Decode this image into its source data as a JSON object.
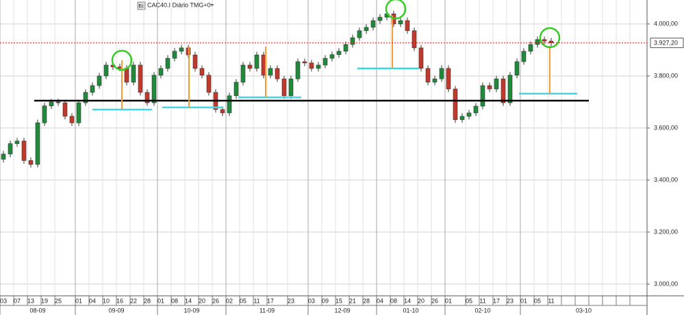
{
  "chart_data": {
    "type": "candlestick",
    "title": "CAC40.I Diário TMG+0▾",
    "icon": "Ec",
    "categories": [
      "03",
      null,
      "07",
      null,
      "13",
      null,
      "19",
      null,
      "25",
      null,
      null,
      "01",
      null,
      "04",
      null,
      "10",
      null,
      "16",
      null,
      "22",
      null,
      "28",
      null,
      "01",
      null,
      "08",
      null,
      "14",
      null,
      "20",
      null,
      "26",
      null,
      "02",
      null,
      "05",
      null,
      "11",
      null,
      "17",
      null,
      null,
      "23",
      null,
      null,
      "03",
      null,
      "09",
      null,
      "15",
      null,
      "21",
      null,
      "28",
      null,
      "04",
      null,
      "08",
      null,
      "14",
      null,
      "20",
      null,
      "26",
      null,
      "01",
      null,
      null,
      "05",
      null,
      "11",
      null,
      "17",
      null,
      "23",
      null,
      "01",
      null,
      "05",
      null,
      "11",
      null,
      null,
      null,
      null,
      null,
      null,
      null,
      null,
      null,
      null,
      null,
      null,
      null
    ],
    "months": [
      "08-09",
      null,
      null,
      null,
      null,
      null,
      null,
      null,
      null,
      null,
      null,
      "09-09",
      null,
      null,
      null,
      null,
      null,
      null,
      null,
      null,
      null,
      null,
      null,
      "10-09",
      null,
      null,
      null,
      null,
      null,
      null,
      null,
      null,
      null,
      "11-09",
      null,
      null,
      null,
      null,
      null,
      null,
      null,
      null,
      null,
      null,
      null,
      "12-09",
      null,
      null,
      null,
      null,
      null,
      null,
      null,
      null,
      null,
      "01-10",
      null,
      null,
      null,
      null,
      null,
      null,
      null,
      null,
      null,
      "02-10",
      null,
      null,
      null,
      null,
      null,
      null,
      null,
      null,
      null,
      null,
      "03-10",
      null,
      null,
      null,
      null,
      null,
      null,
      null,
      null,
      null,
      null,
      null,
      null,
      null,
      null,
      null,
      null,
      null
    ],
    "ohlc": [
      [
        3480,
        3512,
        3468,
        3500
      ],
      [
        3500,
        3552,
        3488,
        3540
      ],
      [
        3540,
        3562,
        3528,
        3550
      ],
      [
        3550,
        3562,
        3463,
        3475
      ],
      [
        3475,
        3487,
        3448,
        3460
      ],
      [
        3460,
        3632,
        3448,
        3620
      ],
      [
        3620,
        3697,
        3608,
        3685
      ],
      [
        3685,
        3712,
        3673,
        3700
      ],
      [
        3700,
        3712,
        3685,
        3697
      ],
      [
        3697,
        3709,
        3633,
        3645
      ],
      [
        3645,
        3657,
        3608,
        3620
      ],
      [
        3620,
        3709,
        3608,
        3697
      ],
      [
        3697,
        3749,
        3685,
        3737
      ],
      [
        3737,
        3775,
        3725,
        3763
      ],
      [
        3763,
        3812,
        3751,
        3800
      ],
      [
        3800,
        3854,
        3788,
        3842
      ],
      [
        3842,
        3854,
        3823,
        3835
      ],
      [
        3835,
        3847,
        3818,
        3830
      ],
      [
        3830,
        3842,
        3764,
        3776
      ],
      [
        3776,
        3854,
        3764,
        3842
      ],
      [
        3842,
        3854,
        3725,
        3737
      ],
      [
        3737,
        3749,
        3685,
        3697
      ],
      [
        3697,
        3815,
        3685,
        3803
      ],
      [
        3803,
        3841,
        3791,
        3829
      ],
      [
        3829,
        3880,
        3817,
        3868
      ],
      [
        3868,
        3907,
        3856,
        3895
      ],
      [
        3895,
        3920,
        3883,
        3908
      ],
      [
        3908,
        3920,
        3869,
        3881
      ],
      [
        3881,
        3893,
        3817,
        3829
      ],
      [
        3829,
        3841,
        3791,
        3803
      ],
      [
        3803,
        3815,
        3725,
        3737
      ],
      [
        3737,
        3749,
        3659,
        3671
      ],
      [
        3671,
        3683,
        3646,
        3658
      ],
      [
        3658,
        3736,
        3646,
        3724
      ],
      [
        3724,
        3788,
        3712,
        3776
      ],
      [
        3776,
        3854,
        3764,
        3842
      ],
      [
        3842,
        3854,
        3817,
        3829
      ],
      [
        3829,
        3893,
        3817,
        3881
      ],
      [
        3881,
        3893,
        3791,
        3803
      ],
      [
        3803,
        3841,
        3791,
        3829
      ],
      [
        3829,
        3841,
        3777,
        3789
      ],
      [
        3789,
        3801,
        3712,
        3724
      ],
      [
        3724,
        3801,
        3712,
        3789
      ],
      [
        3789,
        3867,
        3777,
        3855
      ],
      [
        3855,
        3867,
        3838,
        3850
      ],
      [
        3850,
        3862,
        3817,
        3829
      ],
      [
        3829,
        3854,
        3817,
        3842
      ],
      [
        3842,
        3880,
        3830,
        3868
      ],
      [
        3868,
        3894,
        3856,
        3882
      ],
      [
        3882,
        3907,
        3870,
        3895
      ],
      [
        3895,
        3933,
        3883,
        3921
      ],
      [
        3921,
        3959,
        3909,
        3947
      ],
      [
        3947,
        3986,
        3935,
        3974
      ],
      [
        3974,
        3999,
        3962,
        3987
      ],
      [
        3987,
        4025,
        3975,
        4013
      ],
      [
        4013,
        4038,
        4001,
        4026
      ],
      [
        4026,
        4051,
        4014,
        4039
      ],
      [
        4039,
        4051,
        3988,
        4000
      ],
      [
        4000,
        4025,
        3988,
        4013
      ],
      [
        4013,
        4025,
        3962,
        3974
      ],
      [
        3974,
        3986,
        3896,
        3908
      ],
      [
        3908,
        3920,
        3817,
        3829
      ],
      [
        3829,
        3841,
        3764,
        3776
      ],
      [
        3776,
        3801,
        3764,
        3789
      ],
      [
        3789,
        3841,
        3777,
        3829
      ],
      [
        3829,
        3841,
        3738,
        3750
      ],
      [
        3750,
        3762,
        3620,
        3632
      ],
      [
        3632,
        3657,
        3620,
        3645
      ],
      [
        3645,
        3670,
        3633,
        3658
      ],
      [
        3658,
        3696,
        3646,
        3684
      ],
      [
        3684,
        3775,
        3672,
        3763
      ],
      [
        3763,
        3775,
        3738,
        3750
      ],
      [
        3750,
        3801,
        3738,
        3789
      ],
      [
        3789,
        3801,
        3685,
        3697
      ],
      [
        3697,
        3815,
        3685,
        3803
      ],
      [
        3803,
        3867,
        3791,
        3855
      ],
      [
        3855,
        3907,
        3843,
        3895
      ],
      [
        3895,
        3933,
        3883,
        3921
      ],
      [
        3921,
        3952,
        3909,
        3940
      ],
      [
        3940,
        3952,
        3922,
        3934
      ],
      [
        3934,
        3946,
        3915,
        3927
      ],
      null,
      null,
      null,
      null,
      null,
      null,
      null,
      null,
      null,
      null,
      null,
      null,
      null
    ],
    "up_color": "#1f8a3a",
    "down_color": "#c0392b",
    "ylim": [
      2955,
      4092
    ],
    "yticks": [
      {
        "value": 3000,
        "label": "3.000,00"
      },
      {
        "value": 3200,
        "label": "3.200,00"
      },
      {
        "value": 3400,
        "label": "3.400,00"
      },
      {
        "value": 3600,
        "label": "3.600,00"
      },
      {
        "value": 3800,
        "label": "3.800,00"
      },
      {
        "value": 4000,
        "label": "4.000,00"
      }
    ],
    "grid": true,
    "last_price": {
      "value": 3927.2,
      "label": "3.927,20"
    },
    "support": 3705,
    "measures": [
      {
        "top": 3860,
        "base": 3671
      },
      {
        "top": 3913,
        "base": 3679
      },
      {
        "top": 3913,
        "base": 3718
      },
      {
        "top": 4032,
        "base": 3829
      },
      {
        "top": 3916,
        "base": 3732
      }
    ]
  }
}
